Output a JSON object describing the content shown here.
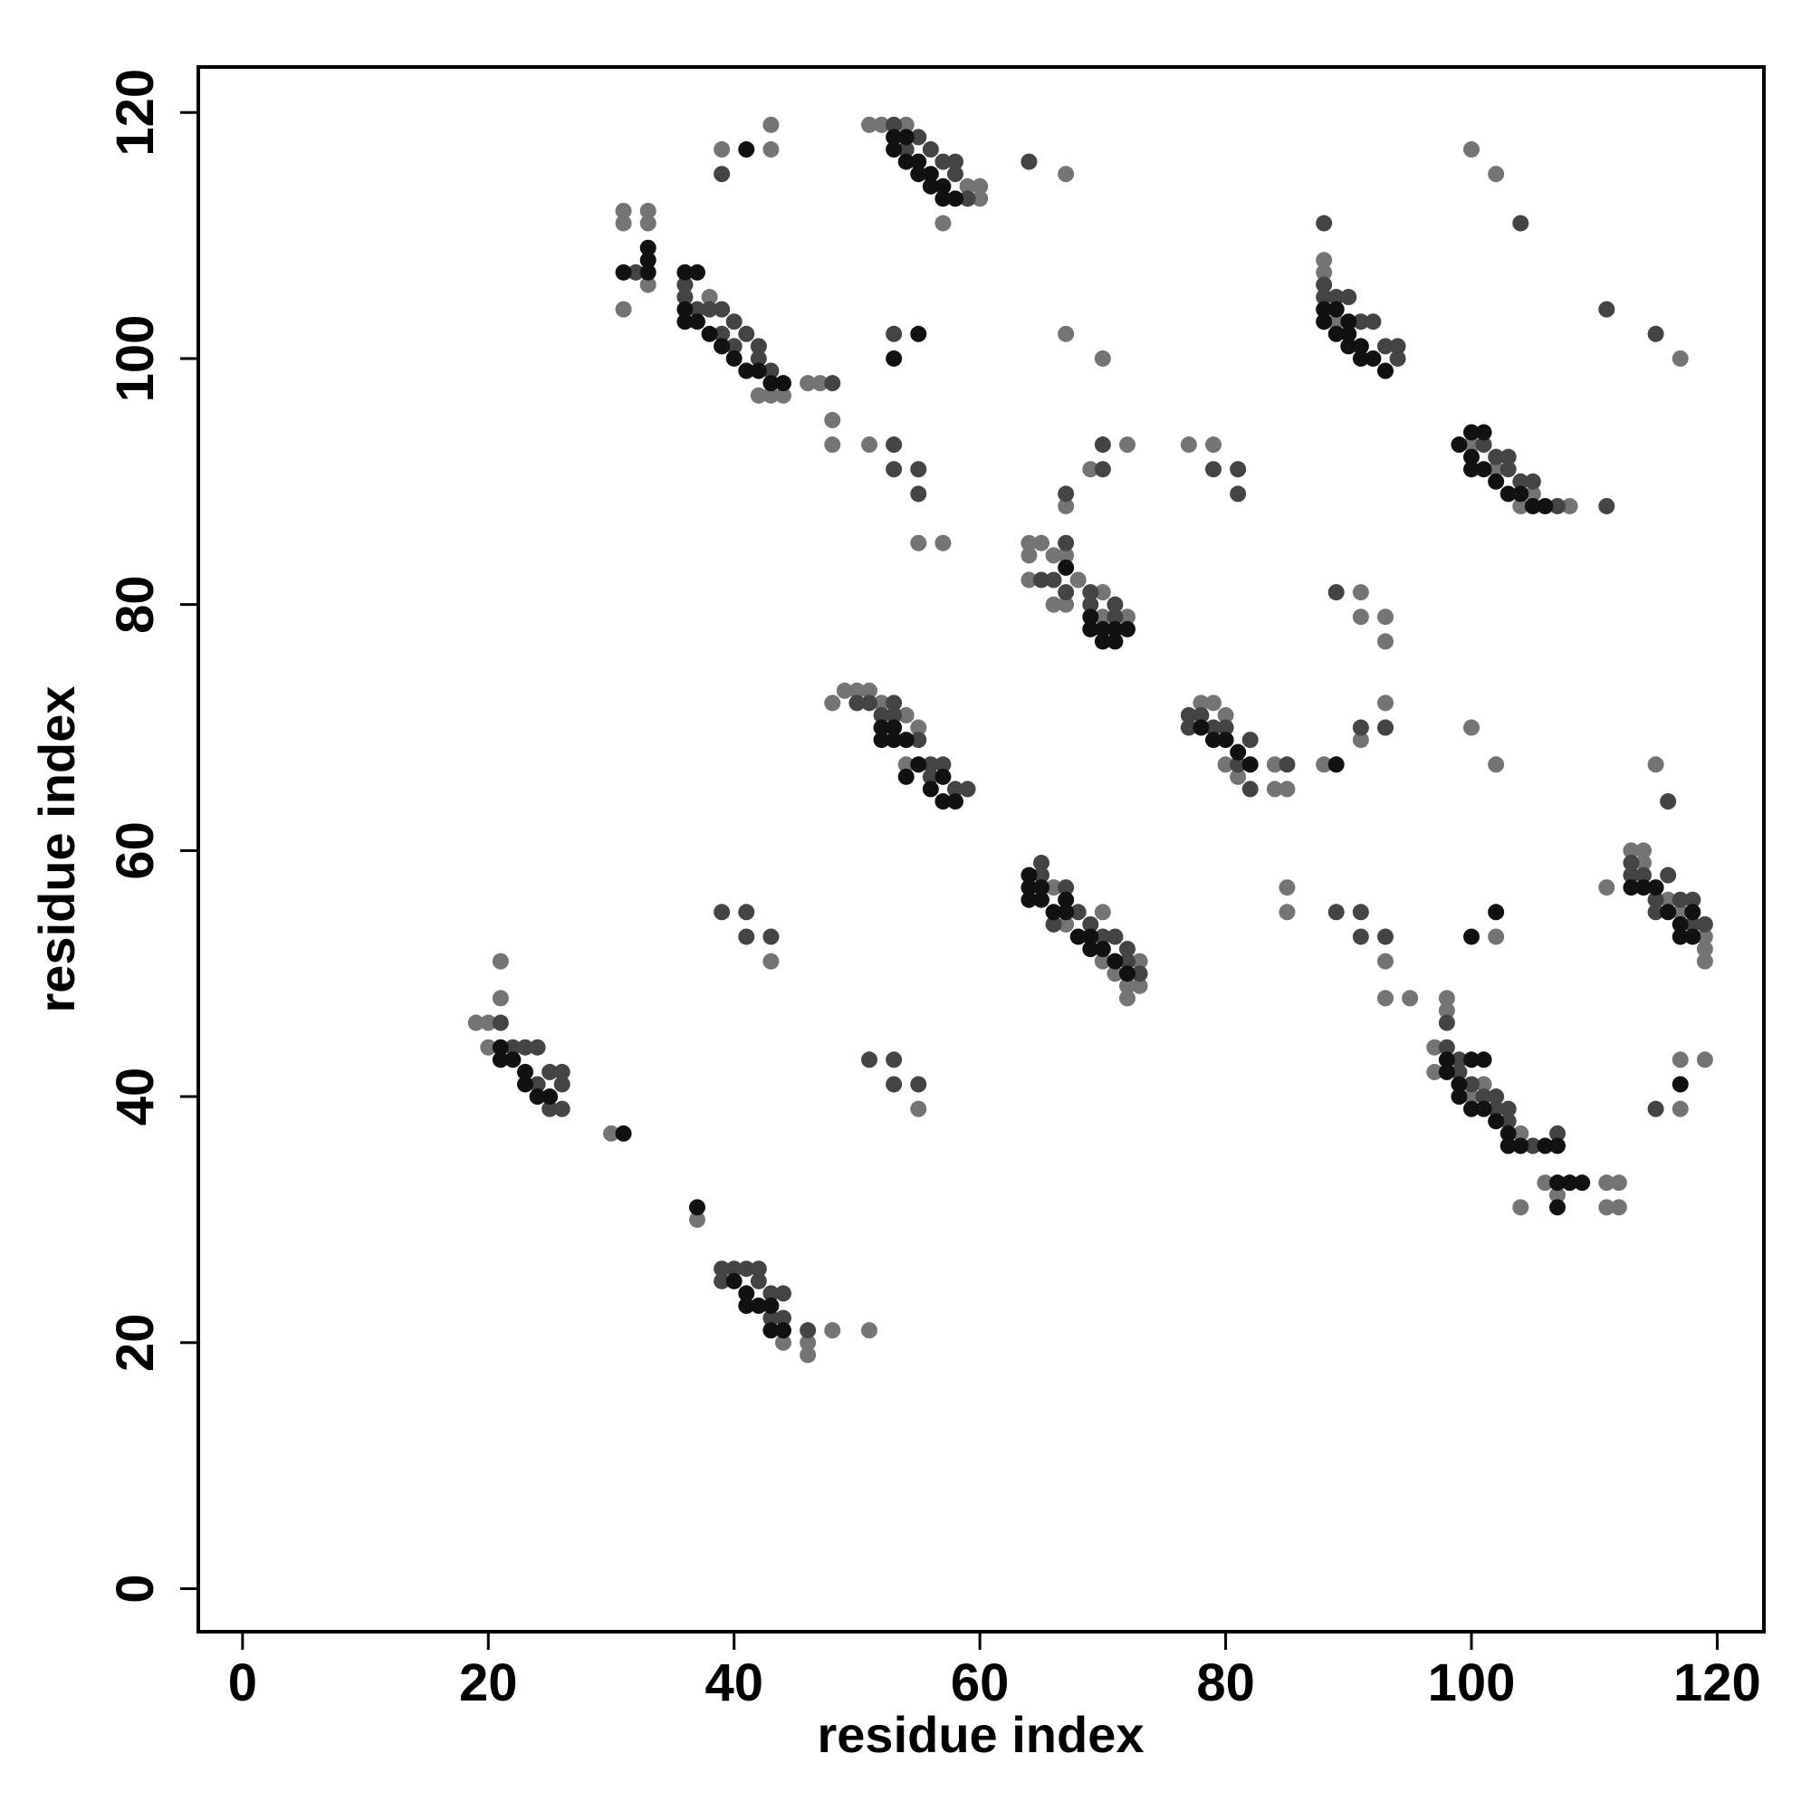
{
  "chart_data": {
    "type": "scatter",
    "xlabel": "residue index",
    "ylabel": "residue index",
    "xlim": [
      -3.6,
      123.8
    ],
    "ylim": [
      -3.5,
      123.7
    ],
    "xticks": [
      0,
      20,
      40,
      60,
      80,
      100,
      120
    ],
    "yticks": [
      0,
      20,
      40,
      60,
      80,
      100,
      120
    ],
    "series": [
      {
        "color": "#747474",
        "x": [
          19,
          20,
          21,
          21,
          20,
          30,
          37,
          44,
          46,
          46,
          48,
          51,
          43,
          55,
          31,
          31,
          33,
          33,
          31,
          33,
          38,
          42,
          43,
          44,
          47,
          46,
          48,
          48,
          39,
          43,
          43,
          51,
          52,
          54,
          59,
          60,
          60,
          57,
          67,
          67,
          70,
          51,
          55,
          57,
          48,
          49,
          50,
          51,
          52,
          54,
          55,
          54,
          66,
          67,
          70,
          70,
          71,
          72,
          73,
          73,
          72,
          64,
          65,
          64,
          64,
          66,
          67,
          66,
          67,
          68,
          70,
          72,
          67,
          69,
          72,
          70,
          78,
          79,
          80,
          80,
          81,
          84,
          85,
          84,
          88,
          91,
          93,
          77,
          79,
          91,
          91,
          93,
          93,
          85,
          85,
          93,
          93,
          95,
          88,
          88,
          89,
          100,
          102,
          117,
          100,
          102,
          104,
          108,
          105,
          97,
          97,
          98,
          98,
          100,
          104,
          106,
          111,
          112,
          111,
          112,
          107,
          104,
          101,
          102,
          100,
          102,
          111,
          113,
          114,
          114,
          116,
          117,
          119,
          119,
          119,
          115,
          117,
          119,
          117
        ],
        "y": [
          46,
          46,
          51,
          48,
          44,
          37,
          30,
          20,
          20,
          19,
          21,
          21,
          51,
          39,
          112,
          111,
          112,
          111,
          104,
          106,
          105,
          97,
          97,
          97,
          98,
          98,
          95,
          93,
          117,
          117,
          119,
          119,
          119,
          119,
          114,
          114,
          113,
          111,
          115,
          102,
          100,
          93,
          85,
          85,
          72,
          73,
          73,
          73,
          72,
          71,
          70,
          67,
          57,
          54,
          55,
          51,
          50,
          49,
          49,
          51,
          48,
          85,
          85,
          84,
          82,
          80,
          80,
          84,
          84,
          82,
          79,
          79,
          88,
          91,
          93,
          81,
          72,
          72,
          71,
          67,
          66,
          65,
          65,
          67,
          67,
          69,
          72,
          93,
          93,
          81,
          79,
          79,
          77,
          57,
          55,
          51,
          48,
          48,
          108,
          107,
          103,
          117,
          115,
          100,
          93,
          91,
          88,
          88,
          89,
          44,
          42,
          48,
          47,
          40,
          37,
          33,
          33,
          33,
          31,
          31,
          32,
          31,
          41,
          53,
          70,
          67,
          57,
          60,
          60,
          59,
          56,
          55,
          53,
          52,
          51,
          67,
          43,
          43,
          39
        ]
      },
      {
        "color": "#444444",
        "x": [
          21,
          22,
          23,
          24,
          25,
          26,
          26,
          25,
          26,
          24,
          39,
          40,
          41,
          42,
          39,
          42,
          43,
          44,
          43,
          44,
          46,
          39,
          41,
          41,
          43,
          51,
          53,
          53,
          55,
          32,
          36,
          36,
          37,
          38,
          39,
          40,
          41,
          42,
          42,
          43,
          39,
          40,
          48,
          39,
          53,
          55,
          56,
          57,
          58,
          58,
          59,
          54,
          64,
          53,
          53,
          53,
          55,
          55,
          50,
          51,
          52,
          53,
          53,
          55,
          56,
          57,
          58,
          59,
          56,
          65,
          65,
          66,
          67,
          68,
          69,
          70,
          71,
          72,
          72,
          73,
          65,
          66,
          67,
          69,
          69,
          71,
          67,
          70,
          70,
          67,
          71,
          77,
          77,
          78,
          79,
          80,
          81,
          82,
          82,
          85,
          91,
          93,
          79,
          81,
          81,
          89,
          89,
          91,
          91,
          93,
          88,
          88,
          88,
          89,
          90,
          91,
          92,
          93,
          94,
          94,
          104,
          111,
          115,
          101,
          102,
          103,
          104,
          105,
          107,
          111,
          103,
          98,
          98,
          99,
          99,
          100,
          101,
          102,
          103,
          105,
          107,
          102,
          103,
          113,
          113,
          114,
          115,
          116,
          117,
          118,
          118,
          119,
          115,
          116,
          115
        ],
        "y": [
          46,
          44,
          44,
          44,
          42,
          42,
          41,
          39,
          39,
          41,
          26,
          26,
          26,
          26,
          25,
          25,
          24,
          24,
          22,
          22,
          21,
          55,
          55,
          53,
          53,
          43,
          43,
          41,
          41,
          107,
          106,
          105,
          104,
          104,
          104,
          103,
          102,
          101,
          100,
          99,
          102,
          101,
          98,
          115,
          119,
          118,
          117,
          116,
          116,
          115,
          113,
          117,
          116,
          102,
          93,
          91,
          91,
          89,
          72,
          72,
          71,
          72,
          71,
          69,
          67,
          67,
          65,
          65,
          66,
          59,
          58,
          54,
          57,
          55,
          54,
          53,
          53,
          52,
          51,
          50,
          82,
          82,
          81,
          81,
          80,
          80,
          89,
          93,
          91,
          85,
          79,
          71,
          70,
          71,
          70,
          70,
          67,
          65,
          69,
          67,
          70,
          70,
          91,
          91,
          89,
          81,
          55,
          55,
          53,
          53,
          111,
          106,
          105,
          105,
          105,
          103,
          103,
          101,
          101,
          100,
          111,
          104,
          102,
          93,
          92,
          92,
          90,
          90,
          88,
          88,
          91,
          46,
          44,
          43,
          42,
          41,
          40,
          39,
          38,
          36,
          37,
          40,
          39,
          59,
          58,
          58,
          56,
          58,
          56,
          56,
          54,
          54,
          55,
          64,
          39
        ]
      },
      {
        "color": "#111111",
        "x": [
          21,
          22,
          23,
          23,
          24,
          25,
          21,
          31,
          37,
          40,
          41,
          41,
          42,
          43,
          43,
          44,
          41,
          31,
          33,
          33,
          33,
          36,
          36,
          37,
          38,
          39,
          40,
          41,
          42,
          43,
          44,
          37,
          36,
          53,
          53,
          54,
          55,
          55,
          56,
          56,
          57,
          57,
          58,
          54,
          53,
          55,
          52,
          52,
          53,
          53,
          54,
          54,
          55,
          56,
          57,
          58,
          57,
          64,
          64,
          64,
          65,
          65,
          66,
          67,
          67,
          68,
          69,
          69,
          70,
          71,
          72,
          69,
          69,
          70,
          70,
          71,
          71,
          72,
          67,
          78,
          79,
          80,
          81,
          82,
          89,
          88,
          88,
          89,
          90,
          90,
          91,
          92,
          93,
          89,
          90,
          91,
          99,
          100,
          100,
          101,
          102,
          103,
          104,
          105,
          106,
          100,
          101,
          98,
          98,
          99,
          99,
          100,
          101,
          100,
          101,
          102,
          103,
          103,
          104,
          106,
          107,
          107,
          108,
          109,
          107,
          100,
          102,
          113,
          114,
          115,
          116,
          117,
          117,
          118,
          118,
          117
        ],
        "y": [
          43,
          43,
          42,
          41,
          40,
          40,
          44,
          37,
          31,
          25,
          24,
          23,
          23,
          23,
          21,
          21,
          117,
          107,
          107,
          108,
          109,
          104,
          103,
          103,
          102,
          101,
          100,
          99,
          99,
          98,
          98,
          107,
          107,
          118,
          117,
          116,
          116,
          115,
          115,
          114,
          114,
          113,
          113,
          118,
          100,
          102,
          70,
          69,
          70,
          69,
          69,
          66,
          67,
          65,
          64,
          64,
          66,
          58,
          57,
          56,
          56,
          57,
          55,
          56,
          55,
          53,
          53,
          52,
          52,
          51,
          50,
          79,
          78,
          78,
          77,
          77,
          78,
          78,
          83,
          70,
          69,
          69,
          68,
          67,
          67,
          104,
          103,
          102,
          102,
          101,
          100,
          100,
          99,
          104,
          103,
          101,
          93,
          92,
          91,
          91,
          90,
          89,
          89,
          88,
          88,
          94,
          94,
          43,
          42,
          41,
          40,
          43,
          43,
          39,
          39,
          38,
          37,
          36,
          36,
          36,
          36,
          33,
          33,
          33,
          31,
          53,
          55,
          57,
          57,
          57,
          55,
          54,
          53,
          53,
          55,
          41
        ]
      }
    ]
  }
}
